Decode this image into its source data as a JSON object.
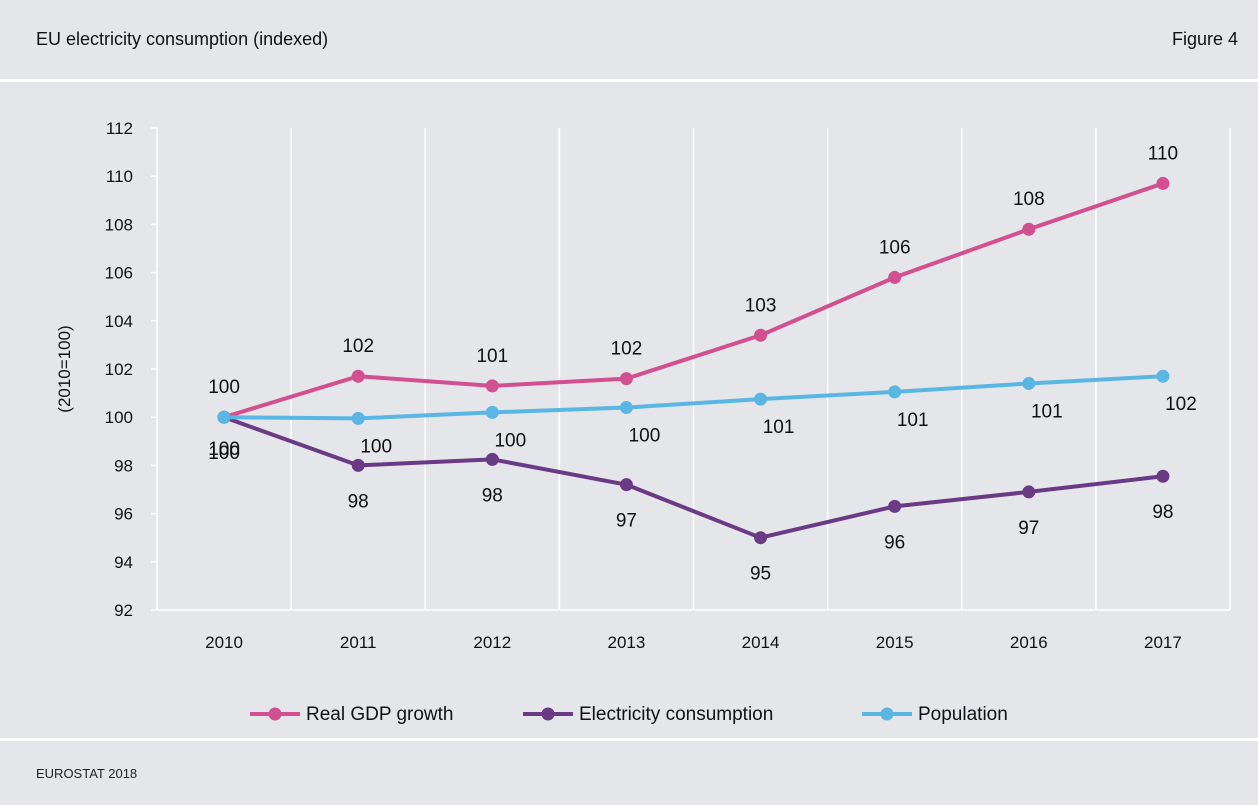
{
  "header": {
    "title": "EU electricity consumption (indexed)",
    "figure_label": "Figure 4"
  },
  "footer": {
    "source": "EUROSTAT 2018"
  },
  "chart_data": {
    "type": "line",
    "ylabel": "(2010=100)",
    "xlabel": "",
    "ylim": [
      92,
      112
    ],
    "yticks": [
      92,
      94,
      96,
      98,
      100,
      102,
      104,
      106,
      108,
      110,
      112
    ],
    "categories": [
      "2010",
      "2011",
      "2012",
      "2013",
      "2014",
      "2015",
      "2016",
      "2017"
    ],
    "grid": "vertical",
    "legend_position": "bottom",
    "series": [
      {
        "name": "Real GDP growth",
        "color": "#d2508f",
        "values": [
          100,
          101.7,
          101.3,
          101.6,
          103.4,
          105.8,
          107.8,
          109.7
        ],
        "labels": [
          "100",
          "102",
          "101",
          "102",
          "103",
          "106",
          "108",
          "110"
        ],
        "label_position": "above"
      },
      {
        "name": "Electricity consumption",
        "color": "#6b3a84",
        "values": [
          100,
          98.0,
          98.25,
          97.2,
          95.0,
          96.3,
          96.9,
          97.55
        ],
        "labels": [
          "100",
          "98",
          "98",
          "97",
          "95",
          "96",
          "97",
          "98"
        ],
        "label_position": "below"
      },
      {
        "name": "Population",
        "color": "#5ab6e2",
        "values": [
          100,
          99.95,
          100.2,
          100.4,
          100.75,
          101.05,
          101.4,
          101.7
        ],
        "labels": [
          "100",
          "100",
          "100",
          "100",
          "101",
          "101",
          "101",
          "102"
        ],
        "label_position": "below"
      }
    ]
  }
}
